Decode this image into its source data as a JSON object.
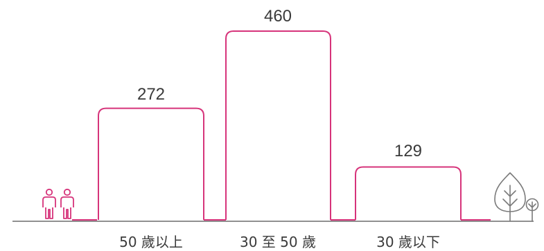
{
  "colors": {
    "accent": "#d6337a",
    "baseline": "#6b6b6b",
    "icon_tree": "#7a7a7a",
    "text": "#3a3a3a"
  },
  "icons": [
    "two-people-icon",
    "tree-icon"
  ],
  "chart_data": {
    "type": "bar",
    "categories": [
      "50 歲以上",
      "30 至 50 歲",
      "30 歲以下"
    ],
    "values": [
      272,
      460,
      129
    ],
    "title": "",
    "xlabel": "",
    "ylabel": "",
    "ylim": [
      0,
      460
    ],
    "grid": false,
    "legend": "none",
    "data_labels": [
      "272",
      "460",
      "129"
    ]
  }
}
